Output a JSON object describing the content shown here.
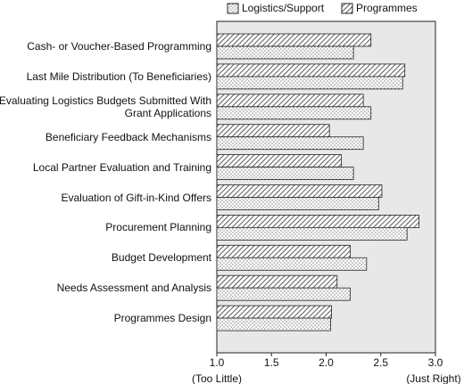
{
  "chart_data": {
    "type": "hbar",
    "categories": [
      "Cash- or Voucher-Based Programming",
      "Last Mile Distribution (To Beneficiaries)",
      "Evaluating Logistics Budgets Submitted With\nGrant Applications",
      "Beneficiary Feedback Mechanisms",
      "Local Partner Evaluation and Training",
      "Evaluation of Gift-in-Kind Offers",
      "Procurement Planning",
      "Budget Development",
      "Needs Assessment and Analysis",
      "Programmes Design"
    ],
    "series": [
      {
        "name": "Logistics/Support",
        "pattern": "dots",
        "color": "#ffffff",
        "values": [
          2.25,
          2.7,
          2.41,
          2.34,
          2.25,
          2.48,
          2.74,
          2.37,
          2.22,
          2.04
        ]
      },
      {
        "name": "Programmes",
        "pattern": "hatch",
        "color": "#ffffff",
        "values": [
          2.41,
          2.72,
          2.34,
          2.03,
          2.14,
          2.51,
          2.85,
          2.22,
          2.1,
          2.05
        ]
      }
    ],
    "xlim": [
      1,
      3
    ],
    "xticks": [
      {
        "value": 1,
        "label": "1.0"
      },
      1.5,
      {
        "value": 2,
        "label": "2.0"
      },
      2.5,
      {
        "value": 3,
        "label": "3.0"
      }
    ],
    "annotations": [
      "(Too Little)",
      "(Just Right)"
    ],
    "background": "#e8e8e8"
  }
}
